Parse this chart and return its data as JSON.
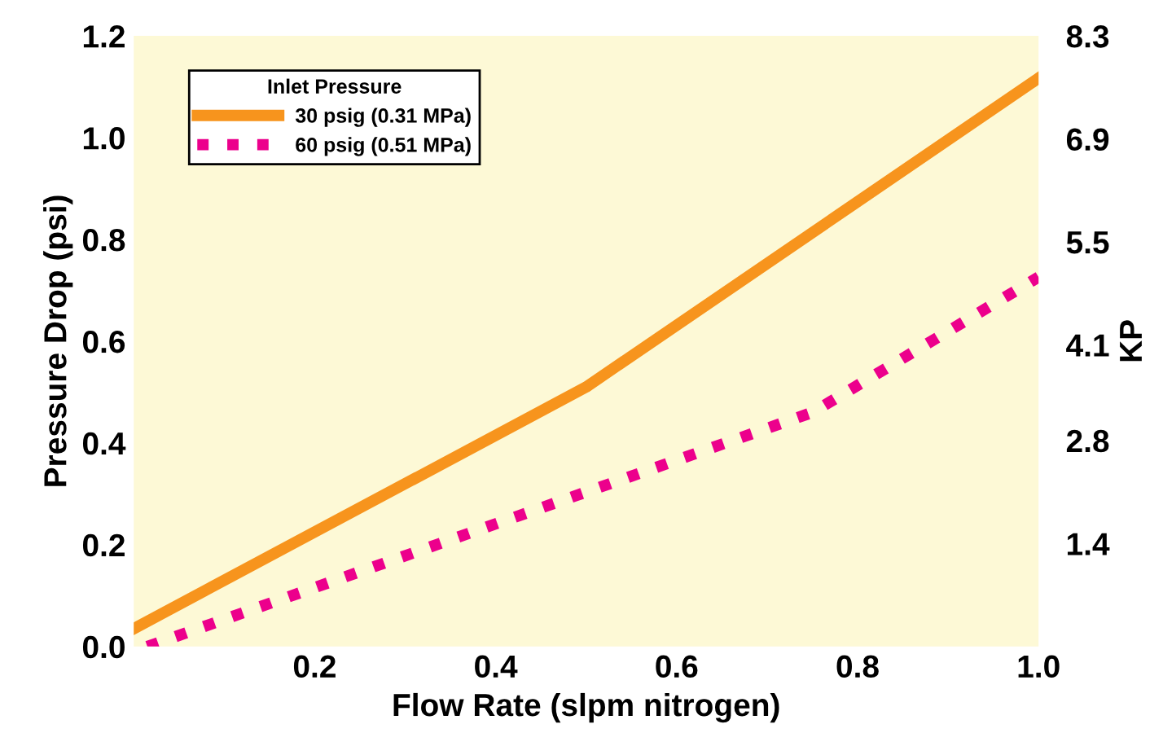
{
  "chart_data": {
    "type": "line",
    "xlabel": "Flow Rate (slpm nitrogen)",
    "ylabel": "Pressure Drop (psi)",
    "y2label": "KP",
    "legend_title": "Inlet Pressure",
    "legend": "top left",
    "grid": false,
    "xlim": [
      0,
      1.0
    ],
    "xticks": [
      0.2,
      0.4,
      0.6,
      0.8,
      {
        "value": 1.0,
        "label": "1.0"
      }
    ],
    "ylim": [
      0,
      1.2
    ],
    "yticks": [
      {
        "value": 0,
        "label": "0.0"
      },
      0.2,
      0.4,
      0.6,
      0.8,
      {
        "value": 1.0,
        "label": "1.0"
      },
      1.2
    ],
    "y2lim": [
      0,
      8.3
    ],
    "y2ticks": [
      1.4,
      2.8,
      4.1,
      5.5,
      6.9,
      8.3
    ],
    "series": [
      {
        "name": "30 psig (0.31 MPa)",
        "color": "#f7941d",
        "line_style": "solid",
        "x": [
          0,
          0.5,
          1.0
        ],
        "values": [
          0.035,
          0.51,
          1.117
        ]
      },
      {
        "name": "60 psig (0.51 MPa)",
        "color": "#ec008c",
        "line_style": "dotted",
        "x": [
          0.015,
          0.75,
          1.0
        ],
        "values": [
          0,
          0.46,
          0.726
        ]
      }
    ]
  }
}
